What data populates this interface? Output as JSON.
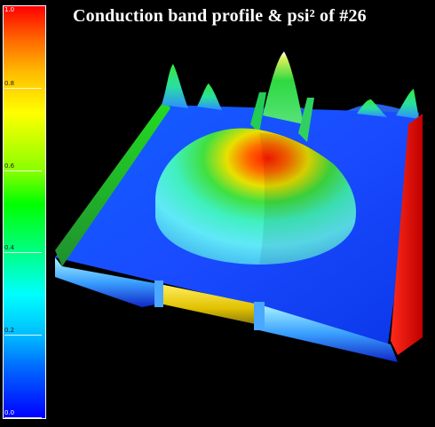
{
  "chart_data": {
    "type": "surface3d",
    "title": "Conduction band profile & psi² of #26",
    "colorbar": {
      "range": [
        0.0,
        1.0
      ],
      "ticks": [
        "0.0",
        "0.2",
        "0.4",
        "0.6",
        "0.8",
        "1.0"
      ],
      "colors": [
        "#0000ff",
        "#00bbff",
        "#00ffff",
        "#00ff00",
        "#ffff00",
        "#ff6600",
        "#ff0000"
      ]
    },
    "features": {
      "central_peak_max": 1.0,
      "side_spikes": 5,
      "side_wall_height": 1.0
    }
  }
}
